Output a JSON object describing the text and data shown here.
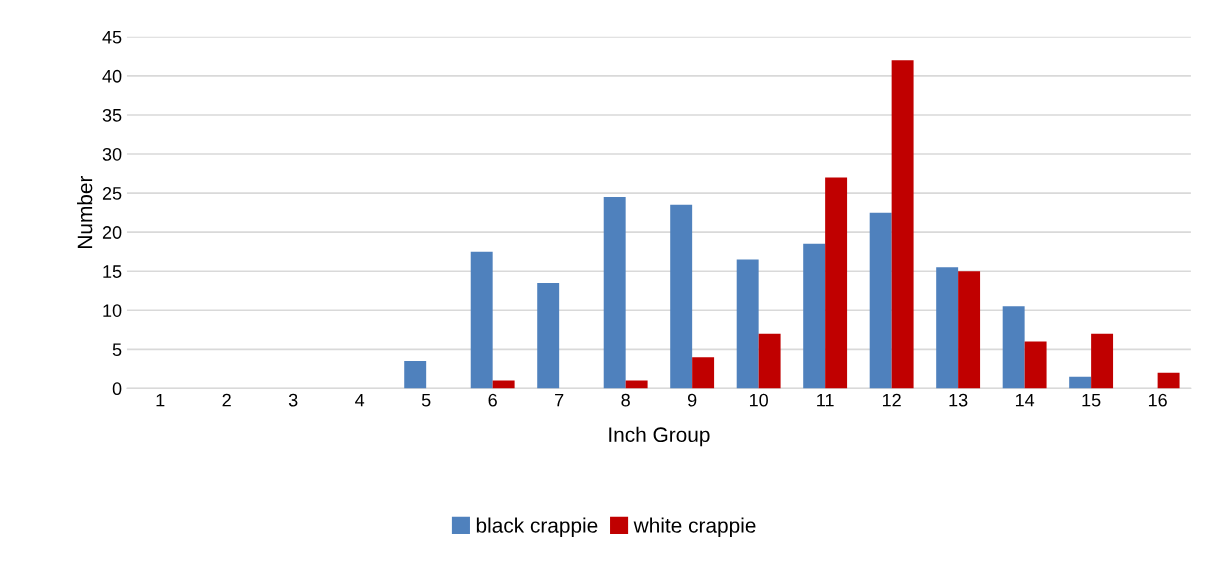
{
  "chart_data": {
    "type": "bar",
    "xlabel": "Inch Group",
    "ylabel": "Number",
    "categories": [
      "1",
      "2",
      "3",
      "4",
      "5",
      "6",
      "7",
      "8",
      "9",
      "10",
      "11",
      "12",
      "13",
      "14",
      "15",
      "16"
    ],
    "series": [
      {
        "name": "black crappie",
        "color": "#4f81bd",
        "values": [
          0,
          0,
          0,
          0,
          3.5,
          17.5,
          13.5,
          24.5,
          23.5,
          16.5,
          18.5,
          22.5,
          15.5,
          10.5,
          1.5,
          0
        ]
      },
      {
        "name": "white crappie",
        "color": "#c00000",
        "values": [
          0,
          0,
          0,
          0,
          0,
          1,
          0,
          1,
          4,
          7,
          27,
          42,
          15,
          6,
          7,
          2
        ]
      }
    ],
    "ylim": [
      0,
      45
    ],
    "yticks": [
      0,
      5,
      10,
      15,
      20,
      25,
      30,
      35,
      40,
      45
    ],
    "grid": "y",
    "legend": "bottom"
  }
}
